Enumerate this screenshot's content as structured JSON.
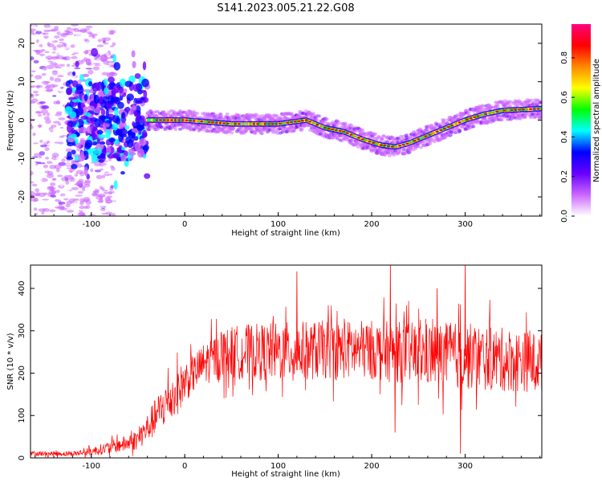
{
  "chart_data": [
    {
      "type": "heatmap",
      "title": "S141.2023.005.21.22.G08",
      "xlabel": "Height of straight line (km)",
      "ylabel": "Frequency (Hz)",
      "xlim": [
        -165,
        382
      ],
      "ylim": [
        -25,
        25
      ],
      "x_ticks": [
        -100,
        0,
        100,
        200,
        300
      ],
      "y_ticks": [
        -20,
        -10,
        0,
        10,
        20
      ],
      "colorbar": {
        "label": "Normalized spectral amplitude",
        "range": [
          0,
          0.97
        ],
        "ticks": [
          0.0,
          0.2,
          0.4,
          0.6,
          0.8
        ],
        "colormap": [
          "#ffffff",
          "#cc66ff",
          "#6600ff",
          "#0000ff",
          "#00ffff",
          "#00ff00",
          "#ffff00",
          "#ff8800",
          "#ff0000",
          "#ff0080"
        ]
      },
      "ridge_trace": {
        "name": "",
        "x": [
          -40,
          0,
          50,
          100,
          130,
          150,
          170,
          190,
          210,
          225,
          240,
          260,
          280,
          300,
          320,
          340,
          382
        ],
        "y": [
          0,
          0,
          -1,
          -1,
          0,
          -2,
          -3,
          -5,
          -6.5,
          -7,
          -6,
          -4,
          -2,
          0,
          1.5,
          2.5,
          3
        ]
      }
    },
    {
      "type": "line",
      "xlabel": "Height of straight line (km)",
      "ylabel": "SNR (10 * v/v)",
      "xlim": [
        -165,
        382
      ],
      "ylim": [
        0,
        455
      ],
      "x_ticks": [
        -100,
        0,
        100,
        200,
        300
      ],
      "y_ticks": [
        0,
        100,
        200,
        300,
        400
      ],
      "line_color": "#ff0000",
      "envelope": {
        "x": [
          -165,
          -120,
          -100,
          -80,
          -60,
          -50,
          -40,
          -30,
          -20,
          -10,
          0,
          10,
          20,
          30,
          40,
          60,
          100,
          150,
          200,
          250,
          300,
          350,
          382
        ],
        "mean": [
          10,
          10,
          15,
          25,
          35,
          45,
          70,
          100,
          130,
          150,
          180,
          200,
          220,
          235,
          245,
          250,
          250,
          255,
          255,
          245,
          240,
          230,
          225
        ],
        "amplitude": [
          6,
          6,
          10,
          15,
          20,
          25,
          35,
          45,
          55,
          55,
          50,
          45,
          50,
          55,
          60,
          65,
          70,
          70,
          70,
          75,
          80,
          75,
          70
        ]
      },
      "spikes": [
        {
          "x": 120,
          "y": 440
        },
        {
          "x": 220,
          "y": 455
        },
        {
          "x": 300,
          "y": 455
        },
        {
          "x": 270,
          "y": 400
        },
        {
          "x": 225,
          "y": 60
        },
        {
          "x": 295,
          "y": 10
        }
      ]
    }
  ]
}
